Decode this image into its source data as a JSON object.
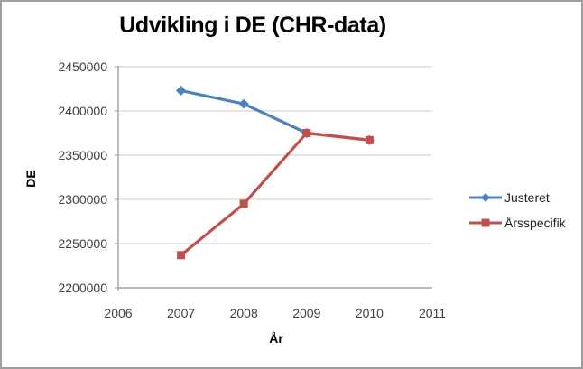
{
  "title": "Udvikling i DE (CHR-data)",
  "y_axis": {
    "label": "DE",
    "tick_labels": [
      "2450000",
      "2400000",
      "2350000",
      "2300000",
      "2250000",
      "2200000"
    ]
  },
  "x_axis": {
    "label": "År",
    "tick_labels": [
      "2006",
      "2007",
      "2008",
      "2009",
      "2010",
      "2011"
    ]
  },
  "legend": {
    "items": [
      {
        "label": "Justeret",
        "marker": "diamond-marker",
        "color": "#4F81BD"
      },
      {
        "label": "Årsspecifik",
        "marker": "square-marker",
        "color": "#C0504D"
      }
    ]
  },
  "colors": {
    "justeret": "#4F81BD",
    "arsspecifik": "#C0504D",
    "gridline": "#C9C9C9",
    "axis": "#A3A3A3",
    "tick_text": "#3F3F3F"
  },
  "chart_data": {
    "type": "line",
    "title": "Udvikling i DE (CHR-data)",
    "xlabel": "År",
    "ylabel": "DE",
    "x": [
      2007,
      2008,
      2009,
      2010
    ],
    "xlim": [
      2006,
      2011
    ],
    "x_ticks": [
      2006,
      2007,
      2008,
      2009,
      2010,
      2011
    ],
    "ylim": [
      2200000,
      2450000
    ],
    "y_ticks": [
      2200000,
      2250000,
      2300000,
      2350000,
      2400000,
      2450000
    ],
    "grid": true,
    "legend_position": "right",
    "series": [
      {
        "name": "Justeret",
        "color": "#4F81BD",
        "marker": "diamond",
        "values": [
          2423000,
          2408000,
          2375000,
          2367000
        ]
      },
      {
        "name": "Årsspecifik",
        "color": "#C0504D",
        "marker": "square",
        "values": [
          2237000,
          2295000,
          2375000,
          2367000
        ]
      }
    ]
  }
}
